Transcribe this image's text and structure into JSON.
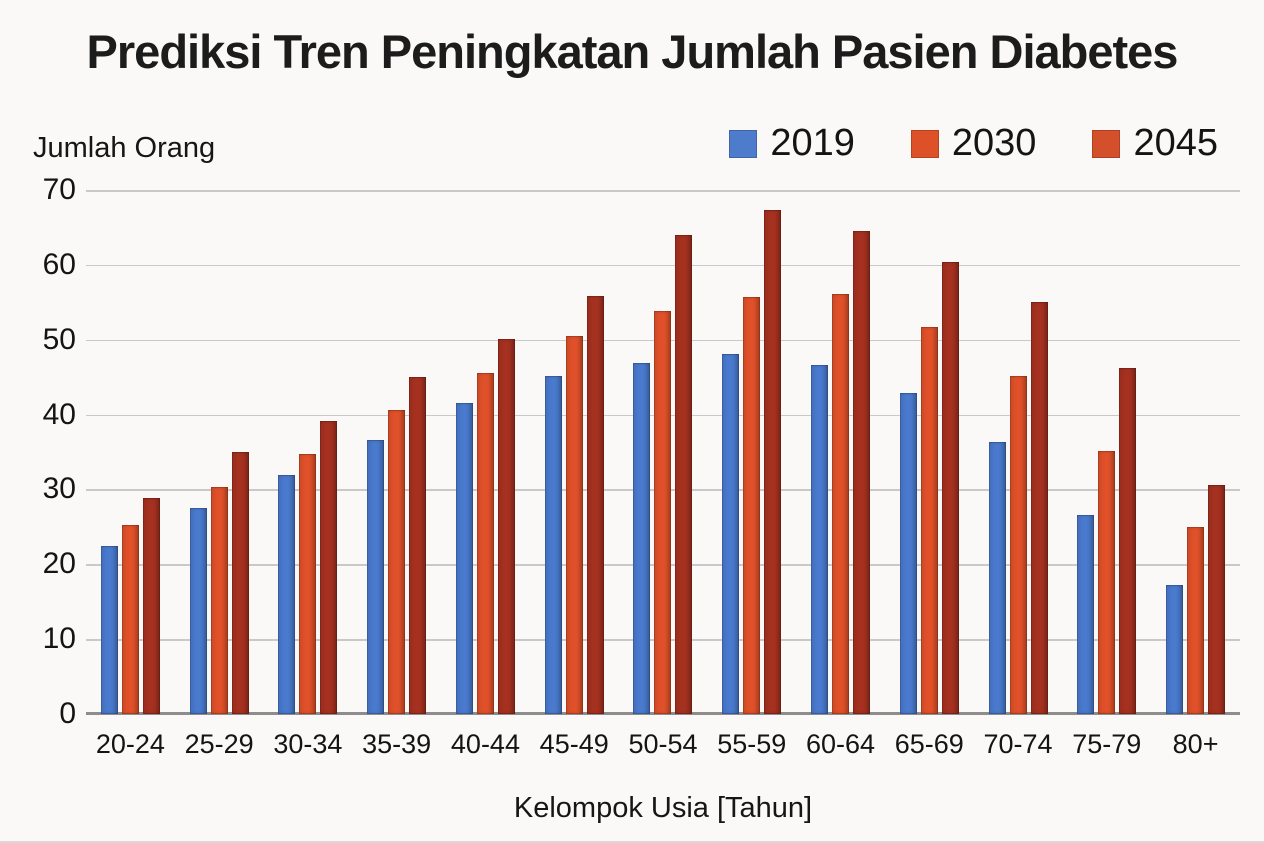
{
  "chart_data": {
    "type": "bar",
    "title": "Prediksi Tren Peningkatan Jumlah Pasien Diabetes",
    "ylabel": "Jumlah Orang",
    "xlabel": "Kelompok Usia [Tahun]",
    "ylim": [
      0,
      70
    ],
    "yticks": [
      70,
      60,
      50,
      40,
      30,
      20,
      10,
      0
    ],
    "grid": true,
    "legend_position": "top-right",
    "categories": [
      "20-24",
      "25-29",
      "30-34",
      "35-39",
      "40-44",
      "45-49",
      "50-54",
      "55-59",
      "60-64",
      "65-69",
      "70-74",
      "75-79",
      "80+"
    ],
    "series": [
      {
        "name": "2019",
        "bar_color": "#4a7ace",
        "legend_swatch_color": "#4d7ccd",
        "values": [
          22.4,
          27.5,
          31.9,
          36.6,
          41.5,
          45.1,
          46.9,
          48.1,
          46.6,
          42.9,
          36.3,
          26.6,
          17.3
        ]
      },
      {
        "name": "2030",
        "bar_color": "#e0512a",
        "legend_swatch_color": "#de5128",
        "values": [
          25.2,
          30.3,
          34.8,
          40.6,
          45.6,
          50.5,
          53.8,
          55.7,
          56.1,
          51.7,
          45.2,
          35.2,
          25.0
        ]
      },
      {
        "name": "2045",
        "bar_color": "#a63120",
        "legend_swatch_color": "#d4502c",
        "values": [
          28.8,
          35.0,
          39.2,
          45.0,
          50.1,
          55.9,
          64.0,
          67.3,
          64.5,
          60.4,
          55.0,
          46.2,
          30.6
        ]
      }
    ]
  },
  "styles": {
    "background": "#faf9f7",
    "gridline_color": "#c9c9c9",
    "axis_line_color": "#8d8d8d",
    "text_color": "#141414",
    "title_color": "#1c1c1c"
  }
}
